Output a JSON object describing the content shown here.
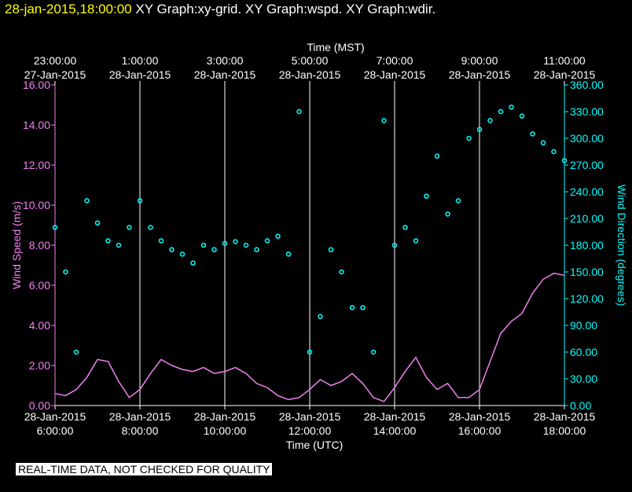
{
  "header": {
    "timestamp": "28-jan-2015,18:00:00",
    "graphs": [
      "XY Graph:xy-grid.",
      "XY Graph:wspd.",
      "XY Graph:wdir."
    ]
  },
  "disclaimer": "REAL-TIME DATA, NOT CHECKED FOR QUALITY",
  "colors": {
    "speed": "#ee82ee",
    "direction": "#00ffff",
    "axis": "#ffffff",
    "grid": "#ffffff"
  },
  "chart_data": {
    "type": "line+scatter",
    "top_axis": {
      "title": "Time (MST)",
      "ticks": [
        {
          "hours": 0,
          "time": "23:00:00",
          "date": "27-Jan-2015"
        },
        {
          "hours": 2,
          "time": "1:00:00",
          "date": "28-Jan-2015"
        },
        {
          "hours": 4,
          "time": "3:00:00",
          "date": "28-Jan-2015"
        },
        {
          "hours": 6,
          "time": "5:00:00",
          "date": "28-Jan-2015"
        },
        {
          "hours": 8,
          "time": "7:00:00",
          "date": "28-Jan-2015"
        },
        {
          "hours": 10,
          "time": "9:00:00",
          "date": "28-Jan-2015"
        },
        {
          "hours": 12,
          "time": "11:00:00",
          "date": "28-Jan-2015"
        }
      ]
    },
    "bottom_axis": {
      "title": "Time (UTC)",
      "range_hours": [
        0,
        12
      ],
      "ticks": [
        {
          "hours": 0,
          "date": "28-Jan-2015",
          "time": "6:00:00"
        },
        {
          "hours": 2,
          "date": "28-Jan-2015",
          "time": "8:00:00"
        },
        {
          "hours": 4,
          "date": "28-Jan-2015",
          "time": "10:00:00"
        },
        {
          "hours": 6,
          "date": "28-Jan-2015",
          "time": "12:00:00"
        },
        {
          "hours": 8,
          "date": "28-Jan-2015",
          "time": "14:00:00"
        },
        {
          "hours": 10,
          "date": "28-Jan-2015",
          "time": "16:00:00"
        },
        {
          "hours": 12,
          "date": "28-Jan-2015",
          "time": "18:00:00"
        }
      ]
    },
    "left_axis": {
      "label": "Wind Speed (m/s)",
      "range": [
        0,
        16
      ],
      "ticks": [
        "0.00",
        "2.00",
        "4.00",
        "6.00",
        "8.00",
        "10.00",
        "12.00",
        "14.00",
        "16.00"
      ]
    },
    "right_axis": {
      "label": "Wind Direction (degrees)",
      "range": [
        0,
        360
      ],
      "ticks": [
        "0.00",
        "30.00",
        "60.00",
        "90.00",
        "120.00",
        "150.00",
        "180.00",
        "210.00",
        "240.00",
        "270.00",
        "300.00",
        "330.00",
        "360.00"
      ]
    },
    "grid_hours": [
      2,
      4,
      6,
      8,
      10
    ],
    "series": [
      {
        "name": "wspd",
        "style": "line",
        "x_hours": [
          0,
          0.25,
          0.5,
          0.75,
          1,
          1.25,
          1.5,
          1.75,
          2,
          2.25,
          2.5,
          2.75,
          3,
          3.25,
          3.5,
          3.75,
          4,
          4.25,
          4.5,
          4.75,
          5,
          5.25,
          5.5,
          5.75,
          6,
          6.25,
          6.5,
          6.75,
          7,
          7.25,
          7.5,
          7.75,
          8,
          8.25,
          8.5,
          8.75,
          9,
          9.25,
          9.5,
          9.75,
          10,
          10.25,
          10.5,
          10.75,
          11,
          11.25,
          11.5,
          11.75,
          12
        ],
        "values": [
          0.6,
          0.5,
          0.8,
          1.4,
          2.3,
          2.2,
          1.2,
          0.4,
          0.8,
          1.6,
          2.3,
          2.0,
          1.8,
          1.7,
          1.9,
          1.6,
          1.7,
          1.9,
          1.6,
          1.1,
          0.9,
          0.5,
          0.3,
          0.4,
          0.8,
          1.3,
          1.0,
          1.2,
          1.6,
          1.1,
          0.4,
          0.2,
          0.9,
          1.7,
          2.4,
          1.4,
          0.8,
          1.1,
          0.4,
          0.4,
          0.8,
          2.2,
          3.6,
          4.2,
          4.6,
          5.6,
          6.3,
          6.6,
          6.5
        ]
      },
      {
        "name": "wdir",
        "style": "markers",
        "x_hours": [
          0,
          0.25,
          0.5,
          0.75,
          1,
          1.25,
          1.5,
          1.75,
          2,
          2.25,
          2.5,
          2.75,
          3,
          3.25,
          3.5,
          3.75,
          4,
          4.25,
          4.5,
          4.75,
          5,
          5.25,
          5.5,
          5.75,
          6,
          6.25,
          6.5,
          6.75,
          7,
          7.25,
          7.5,
          7.75,
          8,
          8.25,
          8.5,
          8.75,
          9,
          9.25,
          9.5,
          9.75,
          10,
          10.25,
          10.5,
          10.75,
          11,
          11.25,
          11.5,
          11.75,
          12
        ],
        "values": [
          200,
          150,
          60,
          230,
          205,
          185,
          180,
          200,
          230,
          200,
          185,
          175,
          170,
          160,
          180,
          175,
          182,
          184,
          180,
          175,
          185,
          190,
          170,
          330,
          60,
          100,
          175,
          150,
          110,
          110,
          60,
          320,
          180,
          200,
          185,
          235,
          280,
          215,
          230,
          300,
          310,
          320,
          330,
          335,
          325,
          305,
          295,
          285,
          275
        ]
      }
    ]
  }
}
